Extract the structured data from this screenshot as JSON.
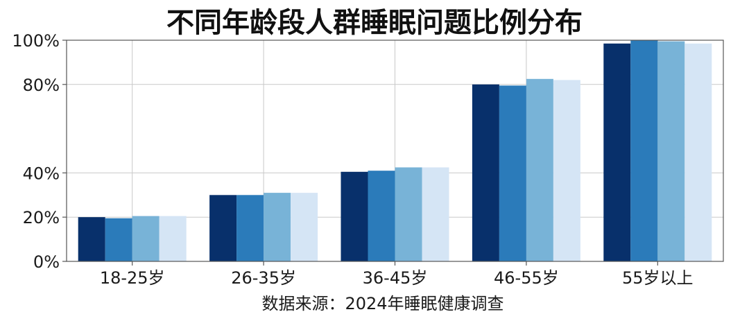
{
  "chart_data": {
    "type": "bar",
    "title": "不同年龄段人群睡眠问题比例分布",
    "xlabel": "数据来源：2024年睡眠健康调查",
    "ylabel": "",
    "categories": [
      "18-25岁",
      "26-35岁",
      "36-45岁",
      "46-55岁",
      "55岁以上"
    ],
    "series": [
      {
        "values": [
          20,
          30,
          40.5,
          80,
          98.5
        ]
      },
      {
        "values": [
          19.5,
          30,
          41,
          79.5,
          100
        ]
      },
      {
        "values": [
          20.5,
          31,
          42.5,
          82.5,
          99.5
        ]
      },
      {
        "values": [
          20.5,
          31,
          42.5,
          82,
          98.5
        ]
      }
    ],
    "series_colors": [
      "#08306b",
      "#2b7bba",
      "#78b3d7",
      "#d5e5f5"
    ],
    "ylim": [
      0,
      100
    ],
    "yticks": [
      0,
      20,
      40,
      80,
      100
    ],
    "ytick_labels": [
      "0%",
      "20%",
      "40%",
      "80%",
      "100%"
    ],
    "grid": true,
    "legend": "none"
  }
}
